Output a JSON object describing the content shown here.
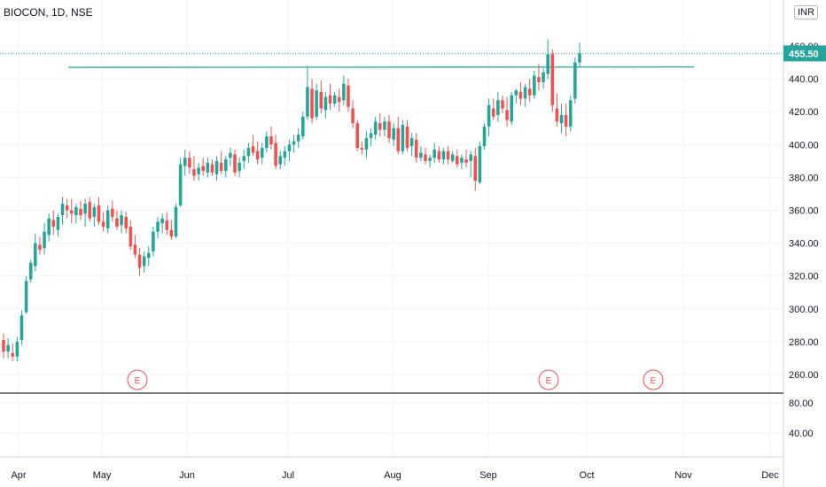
{
  "header": {
    "symbol": "BIOCON, 1D, NSE",
    "currency": "INR"
  },
  "colors": {
    "up": "#26a69a",
    "down": "#ef5350",
    "level_line": "#26a69a",
    "last_price_bg": "#26a69a"
  },
  "chart_data": {
    "type": "candlestick",
    "x_ticks": [
      "Apr",
      "May",
      "Jun",
      "Jul",
      "Aug",
      "Sep",
      "Oct",
      "Nov",
      "Dec"
    ],
    "y_ticks": [
      "460.00",
      "440.00",
      "420.00",
      "400.00",
      "380.00",
      "360.00",
      "340.00",
      "320.00",
      "300.00",
      "280.00",
      "260.00"
    ],
    "ylim": [
      255,
      463
    ],
    "last_price": "455.50",
    "level_line": 447,
    "earnings_markers": [
      "E",
      "E",
      "E"
    ],
    "lower_pane": {
      "y_ticks": [
        "80.00",
        "40.00"
      ]
    },
    "candles": [
      [
        281,
        285,
        270,
        274
      ],
      [
        274,
        282,
        270,
        278
      ],
      [
        273,
        279,
        268,
        271
      ],
      [
        271,
        283,
        268,
        280
      ],
      [
        281,
        299,
        278,
        296
      ],
      [
        298,
        320,
        297,
        317
      ],
      [
        318,
        330,
        316,
        328
      ],
      [
        326,
        346,
        323,
        340
      ],
      [
        339,
        344,
        333,
        336
      ],
      [
        337,
        352,
        333,
        347
      ],
      [
        345,
        358,
        341,
        355
      ],
      [
        354,
        360,
        345,
        350
      ],
      [
        348,
        358,
        344,
        356
      ],
      [
        357,
        368,
        351,
        364
      ],
      [
        363,
        367,
        355,
        360
      ],
      [
        360,
        367,
        352,
        358
      ],
      [
        357,
        364,
        352,
        362
      ],
      [
        361,
        366,
        354,
        357
      ],
      [
        358,
        367,
        350,
        364
      ],
      [
        365,
        368,
        353,
        355
      ],
      [
        356,
        364,
        350,
        362
      ],
      [
        363,
        368,
        351,
        353
      ],
      [
        353,
        359,
        347,
        350
      ],
      [
        349,
        363,
        346,
        360
      ],
      [
        361,
        366,
        353,
        356
      ],
      [
        355,
        360,
        348,
        350
      ],
      [
        351,
        360,
        346,
        357
      ],
      [
        356,
        359,
        346,
        349
      ],
      [
        350,
        354,
        336,
        338
      ],
      [
        339,
        345,
        331,
        333
      ],
      [
        333,
        337,
        320,
        325
      ],
      [
        326,
        335,
        322,
        332
      ],
      [
        331,
        338,
        326,
        334
      ],
      [
        335,
        350,
        332,
        347
      ],
      [
        347,
        356,
        343,
        353
      ],
      [
        352,
        358,
        346,
        355
      ],
      [
        354,
        359,
        345,
        348
      ],
      [
        348,
        354,
        342,
        344
      ],
      [
        344,
        364,
        343,
        362
      ],
      [
        363,
        392,
        362,
        388
      ],
      [
        387,
        397,
        381,
        392
      ],
      [
        392,
        396,
        382,
        386
      ],
      [
        385,
        393,
        378,
        381
      ],
      [
        382,
        389,
        378,
        386
      ],
      [
        387,
        392,
        381,
        384
      ],
      [
        383,
        392,
        380,
        389
      ],
      [
        388,
        391,
        381,
        383
      ],
      [
        382,
        393,
        378,
        390
      ],
      [
        389,
        396,
        382,
        384
      ],
      [
        384,
        393,
        380,
        391
      ],
      [
        392,
        398,
        387,
        395
      ],
      [
        394,
        397,
        381,
        383
      ],
      [
        384,
        392,
        380,
        389
      ],
      [
        390,
        397,
        385,
        393
      ],
      [
        393,
        401,
        389,
        398
      ],
      [
        399,
        406,
        393,
        395
      ],
      [
        396,
        402,
        388,
        391
      ],
      [
        392,
        401,
        388,
        398
      ],
      [
        398,
        408,
        395,
        405
      ],
      [
        405,
        411,
        397,
        400
      ],
      [
        401,
        406,
        385,
        387
      ],
      [
        388,
        396,
        385,
        393
      ],
      [
        392,
        399,
        387,
        396
      ],
      [
        396,
        403,
        390,
        400
      ],
      [
        400,
        406,
        395,
        402
      ],
      [
        402,
        410,
        398,
        406
      ],
      [
        405,
        420,
        403,
        417
      ],
      [
        417,
        448,
        415,
        435
      ],
      [
        434,
        440,
        413,
        416
      ],
      [
        417,
        437,
        415,
        433
      ],
      [
        432,
        439,
        419,
        422
      ],
      [
        421,
        432,
        416,
        429
      ],
      [
        430,
        437,
        421,
        425
      ],
      [
        425,
        432,
        423,
        430
      ],
      [
        429,
        434,
        420,
        426
      ],
      [
        427,
        442,
        424,
        437
      ],
      [
        436,
        440,
        420,
        423
      ],
      [
        422,
        427,
        410,
        413
      ],
      [
        413,
        415,
        396,
        398
      ],
      [
        398,
        402,
        394,
        397
      ],
      [
        397,
        408,
        392,
        404
      ],
      [
        404,
        410,
        399,
        407
      ],
      [
        406,
        417,
        403,
        414
      ],
      [
        413,
        419,
        405,
        409
      ],
      [
        409,
        417,
        405,
        414
      ],
      [
        414,
        418,
        401,
        404
      ],
      [
        403,
        413,
        399,
        410
      ],
      [
        410,
        417,
        394,
        396
      ],
      [
        396,
        415,
        394,
        412
      ],
      [
        411,
        415,
        396,
        398
      ],
      [
        399,
        407,
        393,
        404
      ],
      [
        403,
        407,
        389,
        392
      ],
      [
        392,
        399,
        390,
        395
      ],
      [
        394,
        398,
        388,
        390
      ],
      [
        390,
        394,
        386,
        392
      ],
      [
        392,
        401,
        389,
        397
      ],
      [
        396,
        399,
        389,
        391
      ],
      [
        391,
        398,
        388,
        396
      ],
      [
        396,
        399,
        388,
        391
      ],
      [
        390,
        396,
        389,
        394
      ],
      [
        393,
        397,
        386,
        388
      ],
      [
        389,
        394,
        385,
        392
      ],
      [
        391,
        397,
        386,
        389
      ],
      [
        390,
        396,
        380,
        394
      ],
      [
        393,
        398,
        372,
        378
      ],
      [
        377,
        402,
        376,
        399
      ],
      [
        399,
        413,
        397,
        411
      ],
      [
        411,
        428,
        405,
        424
      ],
      [
        422,
        428,
        415,
        417
      ],
      [
        418,
        432,
        414,
        427
      ],
      [
        427,
        430,
        419,
        422
      ],
      [
        421,
        429,
        411,
        415
      ],
      [
        414,
        432,
        412,
        430
      ],
      [
        430,
        434,
        425,
        433
      ],
      [
        432,
        438,
        424,
        428
      ],
      [
        428,
        437,
        423,
        435
      ],
      [
        434,
        440,
        426,
        430
      ],
      [
        430,
        445,
        428,
        442
      ],
      [
        441,
        449,
        433,
        438
      ],
      [
        438,
        447,
        434,
        444
      ],
      [
        443,
        464,
        440,
        455
      ],
      [
        455,
        458,
        420,
        424
      ],
      [
        422,
        431,
        411,
        414
      ],
      [
        413,
        425,
        407,
        418
      ],
      [
        418,
        425,
        405,
        411
      ],
      [
        411,
        430,
        408,
        427
      ],
      [
        428,
        453,
        425,
        450
      ],
      [
        450,
        462,
        447,
        455.5
      ]
    ]
  }
}
